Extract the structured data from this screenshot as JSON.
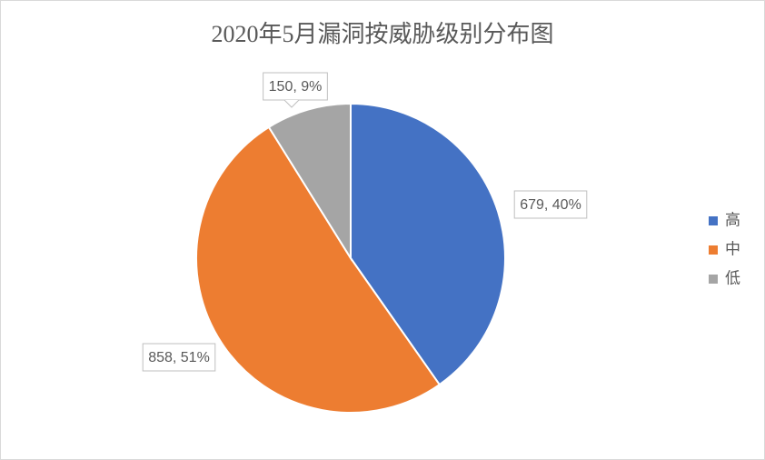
{
  "chart_data": {
    "type": "pie",
    "title": "2020年5月漏洞按威胁级别分布图",
    "categories": [
      "高",
      "中",
      "低"
    ],
    "values": [
      679,
      858,
      150
    ],
    "value_labels": [
      "679, 40%",
      "858, 51%",
      "150, 9%"
    ],
    "colors": [
      "#4472c4",
      "#ed7d31",
      "#a5a5a5"
    ],
    "legend": "right"
  }
}
